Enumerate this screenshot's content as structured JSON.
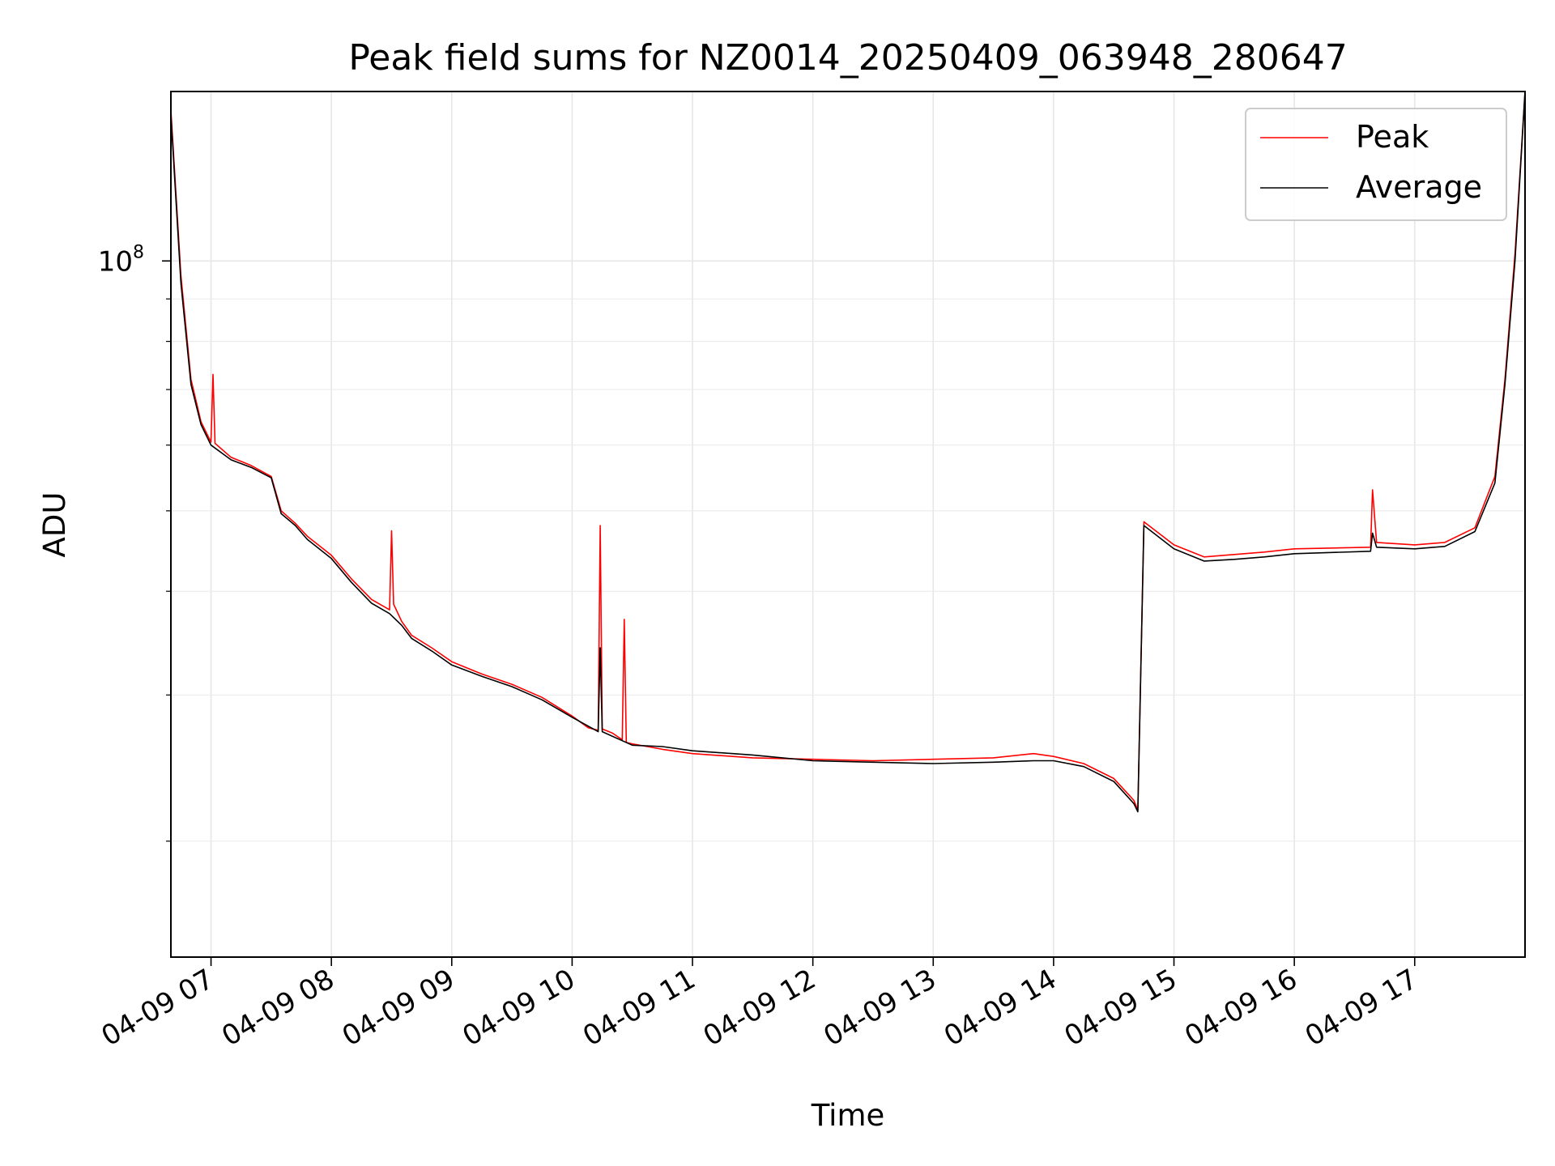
{
  "chart_data": {
    "type": "line",
    "title": "Peak field sums for NZ0014_20250409_063948_280647",
    "xlabel": "Time",
    "ylabel": "ADU",
    "y_scale": "log",
    "ylim": [
      14500000,
      160000000
    ],
    "xlim": [
      "04-09 06:40",
      "04-09 17:55"
    ],
    "grid": true,
    "x_ticks": [
      "04-09 07",
      "04-09 08",
      "04-09 09",
      "04-09 10",
      "04-09 11",
      "04-09 12",
      "04-09 13",
      "04-09 14",
      "04-09 15",
      "04-09 16",
      "04-09 17"
    ],
    "y_tick_major": {
      "value": 100000000,
      "base": "10",
      "exponent": "8"
    },
    "y_minor_ticks": [
      20000000,
      30000000,
      40000000,
      50000000,
      60000000,
      70000000,
      80000000,
      90000000
    ],
    "legend_position": "top-right",
    "series": [
      {
        "name": "Peak",
        "color": "#ff0000",
        "x": [
          "04-09 06:40",
          "04-09 06:45",
          "04-09 06:50",
          "04-09 06:55",
          "04-09 07:00",
          "04-09 07:01",
          "04-09 07:02",
          "04-09 07:10",
          "04-09 07:20",
          "04-09 07:30",
          "04-09 07:35",
          "04-09 07:42",
          "04-09 07:48",
          "04-09 08:00",
          "04-09 08:10",
          "04-09 08:20",
          "04-09 08:29",
          "04-09 08:30",
          "04-09 08:31",
          "04-09 08:35",
          "04-09 08:40",
          "04-09 08:50",
          "04-09 09:00",
          "04-09 09:15",
          "04-09 09:30",
          "04-09 09:45",
          "04-09 10:00",
          "04-09 10:08",
          "04-09 10:13",
          "04-09 10:14",
          "04-09 10:15",
          "04-09 10:20",
          "04-09 10:25",
          "04-09 10:26",
          "04-09 10:27",
          "04-09 10:30",
          "04-09 10:45",
          "04-09 11:00",
          "04-09 11:30",
          "04-09 12:00",
          "04-09 12:30",
          "04-09 13:00",
          "04-09 13:30",
          "04-09 13:50",
          "04-09 14:00",
          "04-09 14:15",
          "04-09 14:30",
          "04-09 14:40",
          "04-09 14:42",
          "04-09 14:45",
          "04-09 15:00",
          "04-09 15:15",
          "04-09 15:30",
          "04-09 15:45",
          "04-09 16:00",
          "04-09 16:38",
          "04-09 16:39",
          "04-09 16:41",
          "04-09 17:00",
          "04-09 17:15",
          "04-09 17:30",
          "04-09 17:40",
          "04-09 17:45",
          "04-09 17:50",
          "04-09 17:55"
        ],
        "values": [
          152000000,
          96000000,
          72000000,
          64000000,
          60500000,
          73000000,
          60300000,
          58000000,
          56700000,
          55000000,
          50000000,
          48300000,
          46600000,
          44200000,
          41400000,
          39100000,
          38000000,
          47300000,
          38600000,
          36800000,
          35400000,
          34200000,
          32900000,
          31800000,
          30900000,
          29800000,
          28300000,
          27400000,
          27200000,
          48000000,
          27300000,
          27000000,
          26500000,
          37000000,
          26300000,
          26200000,
          25800000,
          25500000,
          25200000,
          25100000,
          25000000,
          25100000,
          25200000,
          25500000,
          25300000,
          24800000,
          23800000,
          22400000,
          21800000,
          48500000,
          45500000,
          44000000,
          44300000,
          44600000,
          45000000,
          45200000,
          53000000,
          45800000,
          45500000,
          45800000,
          47700000,
          55000000,
          72000000,
          102000000,
          160000000
        ]
      },
      {
        "name": "Average",
        "color": "#000000",
        "x": [
          "04-09 06:40",
          "04-09 06:45",
          "04-09 06:50",
          "04-09 06:55",
          "04-09 07:00",
          "04-09 07:10",
          "04-09 07:20",
          "04-09 07:30",
          "04-09 07:35",
          "04-09 07:42",
          "04-09 07:48",
          "04-09 08:00",
          "04-09 08:10",
          "04-09 08:20",
          "04-09 08:29",
          "04-09 08:35",
          "04-09 08:40",
          "04-09 08:50",
          "04-09 09:00",
          "04-09 09:15",
          "04-09 09:30",
          "04-09 09:45",
          "04-09 10:00",
          "04-09 10:13",
          "04-09 10:14",
          "04-09 10:15",
          "04-09 10:30",
          "04-09 10:45",
          "04-09 11:00",
          "04-09 11:30",
          "04-09 12:00",
          "04-09 12:30",
          "04-09 13:00",
          "04-09 13:30",
          "04-09 13:50",
          "04-09 14:00",
          "04-09 14:15",
          "04-09 14:30",
          "04-09 14:40",
          "04-09 14:42",
          "04-09 14:45",
          "04-09 15:00",
          "04-09 15:15",
          "04-09 15:30",
          "04-09 15:45",
          "04-09 16:00",
          "04-09 16:38",
          "04-09 16:39",
          "04-09 16:41",
          "04-09 17:00",
          "04-09 17:15",
          "04-09 17:30",
          "04-09 17:40",
          "04-09 17:45",
          "04-09 17:50",
          "04-09 17:55"
        ],
        "values": [
          150000000,
          94000000,
          71000000,
          63500000,
          60000000,
          57600000,
          56400000,
          54800000,
          49600000,
          48000000,
          46200000,
          43800000,
          41000000,
          38700000,
          37600000,
          36400000,
          35100000,
          33900000,
          32600000,
          31600000,
          30700000,
          29600000,
          28200000,
          27100000,
          34200000,
          27100000,
          26100000,
          26000000,
          25700000,
          25400000,
          25000000,
          24900000,
          24800000,
          24900000,
          25000000,
          25000000,
          24600000,
          23600000,
          22200000,
          21700000,
          48000000,
          45000000,
          43500000,
          43700000,
          44000000,
          44400000,
          44700000,
          47000000,
          45200000,
          45000000,
          45300000,
          47200000,
          54000000,
          71000000,
          100000000,
          160000000
        ]
      }
    ]
  }
}
